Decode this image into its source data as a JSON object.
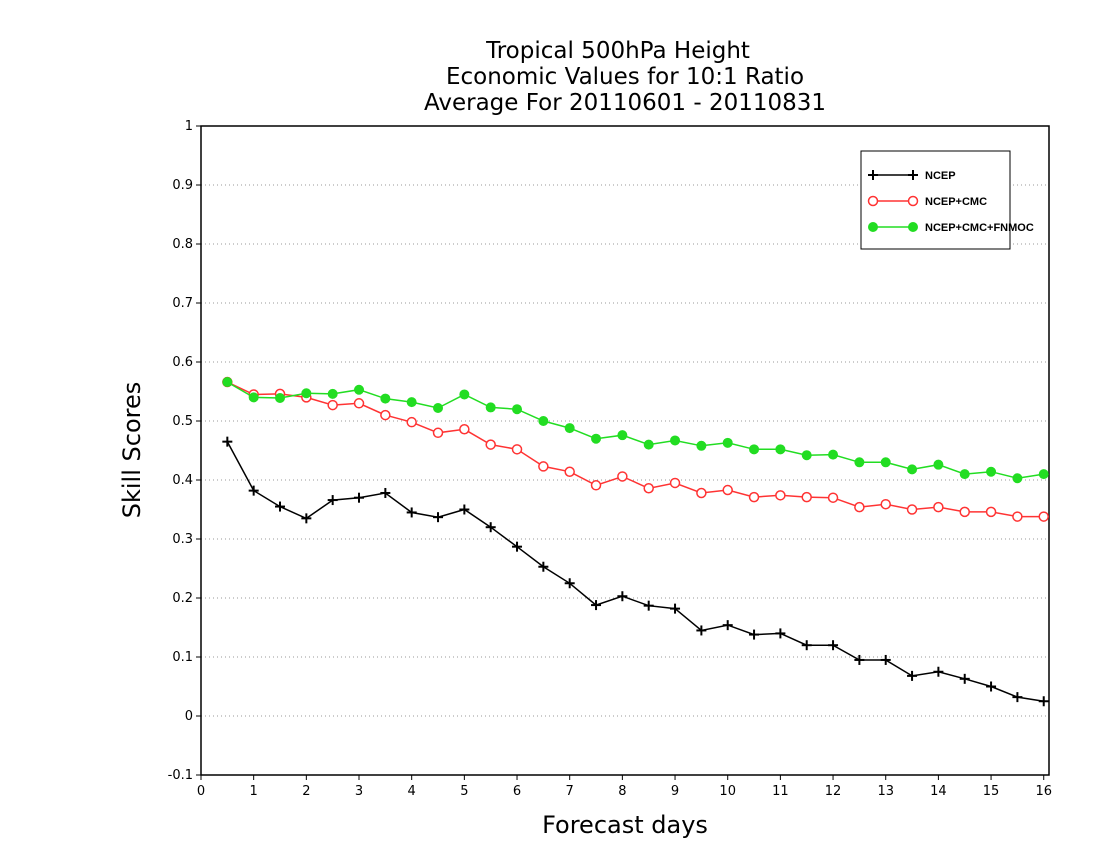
{
  "chart_data": {
    "type": "line",
    "title_lines": [
      "Tropical 500hPa Height",
      "Economic Values for 10:1 Ratio",
      "Average For 20110601 - 20110831"
    ],
    "xlabel": "Forecast days",
    "ylabel": "Skill Scores",
    "xlim": [
      0,
      16.1
    ],
    "ylim": [
      -0.1,
      1
    ],
    "xticks": [
      0,
      1,
      2,
      3,
      4,
      5,
      6,
      7,
      8,
      9,
      10,
      11,
      12,
      13,
      14,
      15,
      16
    ],
    "yticks": [
      -0.1,
      0,
      0.1,
      0.2,
      0.3,
      0.4,
      0.5,
      0.6,
      0.7,
      0.8,
      0.9,
      1
    ],
    "ytick_labels": [
      "-0.1",
      "0",
      "0.1",
      "0.2",
      "0.3",
      "0.4",
      "0.5",
      "0.6",
      "0.7",
      "0.8",
      "0.9",
      "1"
    ],
    "grid": "horizontal dotted",
    "legend_position": "top-right",
    "x": [
      0.5,
      1.0,
      1.5,
      2.0,
      2.5,
      3.0,
      3.5,
      4.0,
      4.5,
      5.0,
      5.5,
      6.0,
      6.5,
      7.0,
      7.5,
      8.0,
      8.5,
      9.0,
      9.5,
      10.0,
      10.5,
      11.0,
      11.5,
      12.0,
      12.5,
      13.0,
      13.5,
      14.0,
      14.5,
      15.0,
      15.5,
      16.0
    ],
    "series": [
      {
        "name": "NCEP",
        "color": "#000000",
        "marker": "plus",
        "values": [
          0.465,
          0.382,
          0.355,
          0.335,
          0.366,
          0.37,
          0.378,
          0.345,
          0.337,
          0.35,
          0.32,
          0.287,
          0.253,
          0.225,
          0.188,
          0.203,
          0.187,
          0.182,
          0.145,
          0.154,
          0.138,
          0.14,
          0.12,
          0.12,
          0.095,
          0.095,
          0.068,
          0.075,
          0.063,
          0.05,
          0.032,
          0.025
        ]
      },
      {
        "name": "NCEP+CMC",
        "color": "#ff3333",
        "marker": "open-circle",
        "values": [
          0.566,
          0.545,
          0.546,
          0.54,
          0.527,
          0.53,
          0.51,
          0.498,
          0.48,
          0.486,
          0.46,
          0.452,
          0.423,
          0.414,
          0.391,
          0.406,
          0.386,
          0.395,
          0.378,
          0.383,
          0.371,
          0.374,
          0.371,
          0.37,
          0.354,
          0.359,
          0.35,
          0.354,
          0.346,
          0.346,
          0.338,
          0.338
        ]
      },
      {
        "name": "NCEP+CMC+FNMOC",
        "color": "#22dd22",
        "marker": "filled-circle",
        "values": [
          0.566,
          0.54,
          0.539,
          0.547,
          0.546,
          0.553,
          0.538,
          0.532,
          0.522,
          0.545,
          0.523,
          0.52,
          0.5,
          0.488,
          0.47,
          0.476,
          0.46,
          0.467,
          0.458,
          0.463,
          0.452,
          0.452,
          0.442,
          0.443,
          0.43,
          0.43,
          0.418,
          0.426,
          0.41,
          0.414,
          0.403,
          0.41
        ]
      }
    ]
  }
}
